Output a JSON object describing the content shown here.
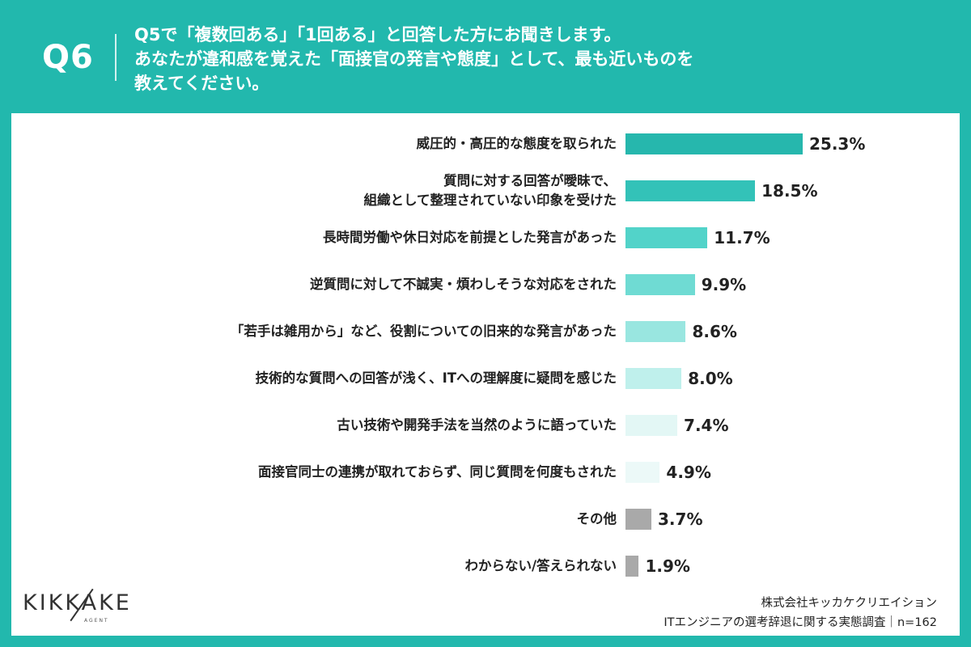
{
  "header": {
    "q_number": "Q6",
    "question_lines": [
      "Q5で「複数回ある」「1回ある」と回答した方にお聞きします。",
      "あなたが違和感を覚えた「面接官の発言や態度」として、最も近いものを",
      "教えてください。"
    ]
  },
  "chart_data": {
    "type": "bar",
    "orientation": "horizontal",
    "categories": [
      [
        "威圧的・高圧的な態度を取られた"
      ],
      [
        "質問に対する回答が曖昧で、",
        "組織として整理されていない印象を受けた"
      ],
      [
        "長時間労働や休日対応を前提とした発言があった"
      ],
      [
        "逆質問に対して不誠実・煩わしそうな対応をされた"
      ],
      [
        "「若手は雑用から」など、役割についての旧来的な発言があった"
      ],
      [
        "技術的な質問への回答が浅く、ITへの理解度に疑問を感じた"
      ],
      [
        "古い技術や開発手法を当然のように語っていた"
      ],
      [
        "面接官同士の連携が取れておらず、同じ質問を何度もされた"
      ],
      [
        "その他"
      ],
      [
        "わからない/答えられない"
      ]
    ],
    "values": [
      25.3,
      18.5,
      11.7,
      9.9,
      8.6,
      8.0,
      7.4,
      4.9,
      3.7,
      1.9
    ],
    "value_labels": [
      "25.3%",
      "18.5%",
      "11.7%",
      "9.9%",
      "8.6%",
      "8.0%",
      "7.4%",
      "4.9%",
      "3.7%",
      "1.9%"
    ],
    "unit": "%",
    "colors": [
      "#26b7ad",
      "#33c2b8",
      "#52d3c9",
      "#6fdbd3",
      "#99e6e0",
      "#bff0ec",
      "#e3f7f5",
      "#ecf9f8",
      "#a9a9a9",
      "#a9a9a9"
    ]
  },
  "footer": {
    "line1": "株式会社キッカケクリエイション",
    "line2": "ITエンジニアの選考辞退に関する実態調査｜n=162"
  },
  "logo": {
    "text": "KIKKAKE",
    "sub": "AGENT"
  }
}
